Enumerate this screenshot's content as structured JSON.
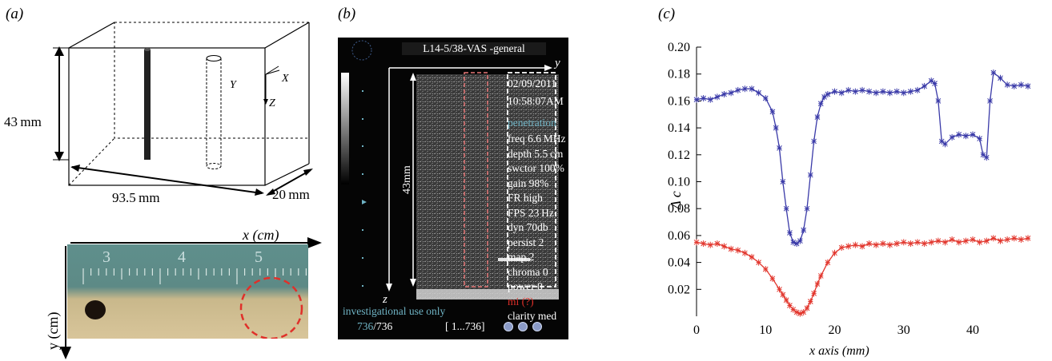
{
  "panels": {
    "a": {
      "label": "(a)",
      "height_dim": "43 mm",
      "length_dim": "93.5 mm",
      "width_dim": "20 mm",
      "axis_y": "Y",
      "axis_x": "X",
      "axis_z": "Z",
      "photo_x_label": "x (cm)",
      "photo_y_label": "y (cm)",
      "ruler_numbers": [
        "3",
        "4",
        "5"
      ]
    },
    "b": {
      "label": "(b)",
      "header": "L14-5/38-VAS -general",
      "axis_y": "y",
      "axis_z": "z",
      "depth_label": "43mm",
      "date": "02/09/2011",
      "time": "10:58:07AM",
      "settings_title": "penetration",
      "settings": [
        "freq 6.6 MHz",
        "depth 5.5 cm",
        "swctor 100%",
        "gain 98%",
        "FR high",
        "FPS 23 Hz",
        "dyn 70db",
        "persist 2",
        "map 2",
        "chroma 0",
        "power 0"
      ],
      "mi": "mi (?)",
      "clarity": "clarity med",
      "investigational": "investigational use only",
      "frame_current": "736",
      "frame_total": "/736",
      "frame_range": "[ 1...736]",
      "colors": {
        "accent_cyan": "#6fb3c4",
        "accent_red": "#e0302a",
        "dashed_red": "#e87878"
      }
    },
    "c": {
      "label": "(c)"
    }
  },
  "chart_data": {
    "type": "line",
    "xlabel": "x axis (mm)",
    "ylabel": "Δ c",
    "xlim": [
      0,
      48
    ],
    "ylim": [
      0,
      0.2
    ],
    "x_ticks": [
      "0",
      "10",
      "20",
      "30",
      "40"
    ],
    "y_ticks": [
      "0.02",
      "0.04",
      "0.06",
      "0.08",
      "0.10",
      "0.12",
      "0.14",
      "0.16",
      "0.18",
      "0.20"
    ],
    "grid": false,
    "series": [
      {
        "color": "#3a3aa8",
        "x": [
          0,
          1,
          2,
          3,
          4,
          5,
          6,
          7,
          8,
          9,
          10,
          11,
          11.5,
          12,
          12.5,
          13,
          13.5,
          14,
          14.5,
          15,
          15.5,
          16,
          16.5,
          17,
          17.5,
          18,
          18.5,
          19,
          20,
          21,
          22,
          23,
          24,
          25,
          26,
          27,
          28,
          29,
          30,
          31,
          32,
          33,
          34,
          34.5,
          35,
          35.5,
          36,
          37,
          38,
          39,
          40,
          41,
          41.5,
          42,
          42.5,
          43,
          44,
          45,
          46,
          47,
          48
        ],
        "y": [
          0.161,
          0.162,
          0.161,
          0.163,
          0.165,
          0.166,
          0.168,
          0.169,
          0.169,
          0.166,
          0.162,
          0.152,
          0.14,
          0.125,
          0.1,
          0.08,
          0.062,
          0.055,
          0.054,
          0.056,
          0.064,
          0.08,
          0.105,
          0.13,
          0.148,
          0.158,
          0.163,
          0.165,
          0.167,
          0.166,
          0.168,
          0.167,
          0.168,
          0.167,
          0.166,
          0.167,
          0.166,
          0.167,
          0.166,
          0.167,
          0.168,
          0.171,
          0.175,
          0.173,
          0.16,
          0.13,
          0.128,
          0.133,
          0.135,
          0.134,
          0.135,
          0.132,
          0.12,
          0.118,
          0.16,
          0.181,
          0.177,
          0.172,
          0.171,
          0.172,
          0.171
        ]
      },
      {
        "color": "#e2372e",
        "x": [
          0,
          1,
          2,
          3,
          4,
          5,
          6,
          7,
          8,
          9,
          10,
          11,
          12,
          12.5,
          13,
          13.5,
          14,
          14.5,
          15,
          15.5,
          16,
          16.5,
          17,
          17.5,
          18,
          19,
          20,
          21,
          22,
          23,
          24,
          25,
          26,
          27,
          28,
          29,
          30,
          31,
          32,
          33,
          34,
          35,
          36,
          37,
          38,
          39,
          40,
          41,
          42,
          43,
          44,
          45,
          46,
          47,
          48
        ],
        "y": [
          0.055,
          0.054,
          0.053,
          0.054,
          0.052,
          0.05,
          0.049,
          0.047,
          0.044,
          0.04,
          0.035,
          0.028,
          0.02,
          0.016,
          0.012,
          0.008,
          0.005,
          0.003,
          0.002,
          0.003,
          0.006,
          0.011,
          0.017,
          0.024,
          0.03,
          0.04,
          0.047,
          0.051,
          0.052,
          0.053,
          0.052,
          0.054,
          0.053,
          0.054,
          0.053,
          0.054,
          0.055,
          0.054,
          0.055,
          0.054,
          0.055,
          0.056,
          0.055,
          0.057,
          0.055,
          0.056,
          0.057,
          0.055,
          0.056,
          0.058,
          0.056,
          0.057,
          0.058,
          0.057,
          0.058
        ]
      }
    ]
  }
}
